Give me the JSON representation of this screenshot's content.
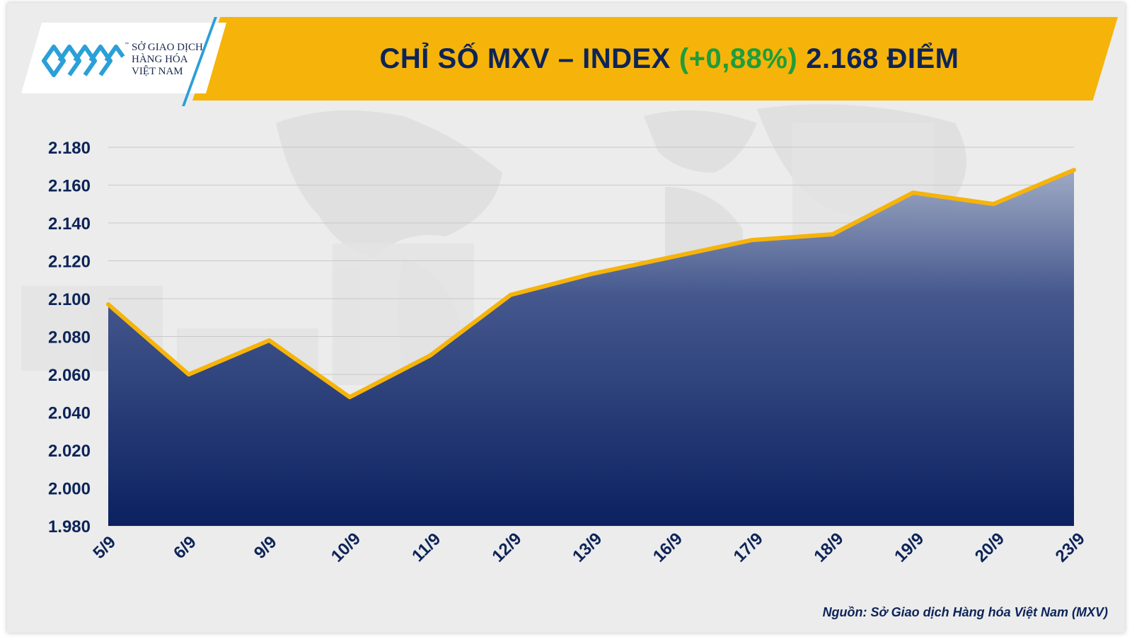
{
  "header": {
    "title_prefix": "CHỈ SỐ MXV – INDEX",
    "title_change": "(+0,88%)",
    "title_suffix": "2.168 ĐIỂM"
  },
  "logo": {
    "line1": "SỞ GIAO DỊCH",
    "line2": "HÀNG HÓA",
    "line3": "VIỆT NAM",
    "tm": "™"
  },
  "colors": {
    "banner": "#f6b40a",
    "title": "#0d2458",
    "change": "#1f9d3a",
    "line": "#f6b40a",
    "area_top": "#9aa6c2",
    "area_bottom": "#0b2160"
  },
  "source": "Nguồn: Sở Giao dịch Hàng hóa Việt Nam (MXV)",
  "chart_data": {
    "type": "area",
    "categories": [
      "5/9",
      "6/9",
      "9/9",
      "10/9",
      "11/9",
      "12/9",
      "13/9",
      "16/9",
      "17/9",
      "18/9",
      "19/9",
      "20/9",
      "23/9"
    ],
    "series": [
      {
        "values": [
          2097,
          2060,
          2078,
          2048,
          2070,
          2102,
          2113,
          2122,
          2131,
          2134,
          2156,
          2150,
          2168
        ]
      }
    ],
    "ylim": [
      1980,
      2180
    ],
    "yticks": [
      1980,
      2000,
      2020,
      2040,
      2060,
      2080,
      2100,
      2120,
      2140,
      2160,
      2180
    ],
    "ytick_labels": [
      "1.980",
      "2.000",
      "2.020",
      "2.040",
      "2.060",
      "2.080",
      "2.100",
      "2.120",
      "2.140",
      "2.160",
      "2.180"
    ],
    "grid": true,
    "legend": "none"
  }
}
